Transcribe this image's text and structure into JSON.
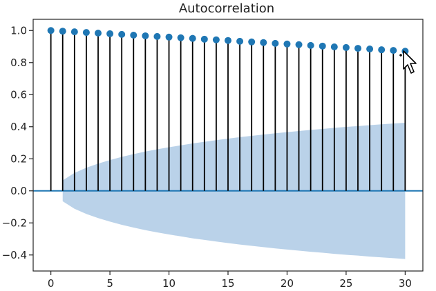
{
  "chart_data": {
    "type": "stem",
    "title": "Autocorrelation",
    "xlabel": "",
    "ylabel": "",
    "xlim": [
      -1.5,
      31.5
    ],
    "ylim": [
      -0.5,
      1.07
    ],
    "x_ticks": [
      0,
      5,
      10,
      15,
      20,
      25,
      30
    ],
    "y_ticks": [
      1.0,
      0.8,
      0.6,
      0.4,
      0.2,
      0.0,
      -0.2,
      -0.4
    ],
    "x_tick_labels": [
      "0",
      "5",
      "10",
      "15",
      "20",
      "25",
      "30"
    ],
    "y_tick_labels": [
      "1.0",
      "0.8",
      "0.6",
      "0.4",
      "0.2",
      "0.0",
      "−0.2",
      "−0.4"
    ],
    "lags": [
      0,
      1,
      2,
      3,
      4,
      5,
      6,
      7,
      8,
      9,
      10,
      11,
      12,
      13,
      14,
      15,
      16,
      17,
      18,
      19,
      20,
      21,
      22,
      23,
      24,
      25,
      26,
      27,
      28,
      29,
      30
    ],
    "values": [
      1.0,
      0.996,
      0.992,
      0.988,
      0.984,
      0.98,
      0.976,
      0.971,
      0.967,
      0.963,
      0.959,
      0.955,
      0.951,
      0.946,
      0.942,
      0.938,
      0.933,
      0.929,
      0.925,
      0.92,
      0.916,
      0.912,
      0.907,
      0.903,
      0.898,
      0.894,
      0.889,
      0.885,
      0.88,
      0.876,
      0.871
    ],
    "confidence_band": {
      "x": [
        1,
        2,
        3,
        4,
        5,
        6,
        7,
        8,
        9,
        10,
        11,
        12,
        13,
        14,
        15,
        16,
        17,
        18,
        19,
        20,
        21,
        22,
        23,
        24,
        25,
        26,
        27,
        28,
        29,
        30
      ],
      "upper": [
        0.065,
        0.112,
        0.144,
        0.17,
        0.192,
        0.212,
        0.229,
        0.245,
        0.259,
        0.272,
        0.284,
        0.296,
        0.306,
        0.316,
        0.326,
        0.335,
        0.343,
        0.351,
        0.359,
        0.366,
        0.373,
        0.38,
        0.386,
        0.393,
        0.399,
        0.404,
        0.41,
        0.415,
        0.42,
        0.425
      ]
    },
    "colors": {
      "marker": "#1f77b4",
      "stem": "#000000",
      "band": "#a9c7e3",
      "baseline": "#1f77b4",
      "axes": "#222222"
    }
  }
}
